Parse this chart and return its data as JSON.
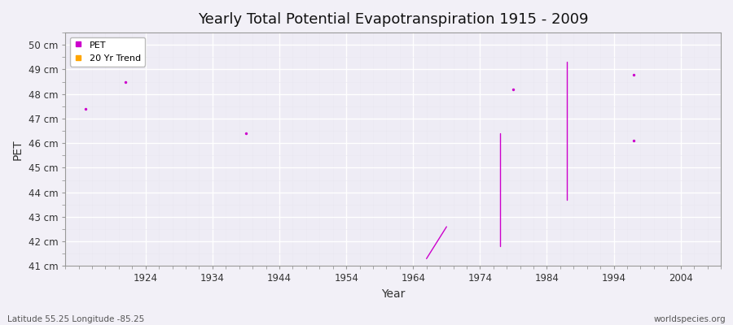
{
  "title": "Yearly Total Potential Evapotranspiration 1915 - 2009",
  "xlabel": "Year",
  "ylabel": "PET",
  "background_color": "#f2f0f7",
  "plot_bg_color": "#eeecf5",
  "grid_major_color": "#ffffff",
  "grid_minor_color": "#e8e6f0",
  "title_fontsize": 13,
  "xlabel_fontsize": 10,
  "ylabel_fontsize": 10,
  "xlim": [
    1912,
    2010
  ],
  "ylim": [
    41,
    50.5
  ],
  "yticks": [
    41,
    42,
    43,
    44,
    45,
    46,
    47,
    48,
    49,
    50
  ],
  "ytick_labels": [
    "41 cm",
    "42 cm",
    "43 cm",
    "44 cm",
    "45 cm",
    "46 cm",
    "47 cm",
    "48 cm",
    "49 cm",
    "50 cm"
  ],
  "xticks": [
    1924,
    1934,
    1944,
    1954,
    1964,
    1974,
    1984,
    1994,
    2004
  ],
  "pet_points_x": [
    1915,
    1921,
    1939,
    1979,
    1997
  ],
  "pet_points_y": [
    47.4,
    48.5,
    46.4,
    48.2,
    48.8
  ],
  "pet_point2_x": [
    1997
  ],
  "pet_point2_y": [
    46.1
  ],
  "trend_lines": [
    {
      "x": [
        1966,
        1969
      ],
      "y": [
        41.3,
        42.6
      ]
    },
    {
      "x": [
        1977,
        1977
      ],
      "y": [
        41.8,
        46.4
      ]
    },
    {
      "x": [
        1987,
        1987
      ],
      "y": [
        43.7,
        49.3
      ]
    }
  ],
  "pet_color": "#cc00cc",
  "trend_color": "#cc00cc",
  "dot_size": 6,
  "watermark": "worldspecies.org",
  "footer_left": "Latitude 55.25 Longitude -85.25"
}
